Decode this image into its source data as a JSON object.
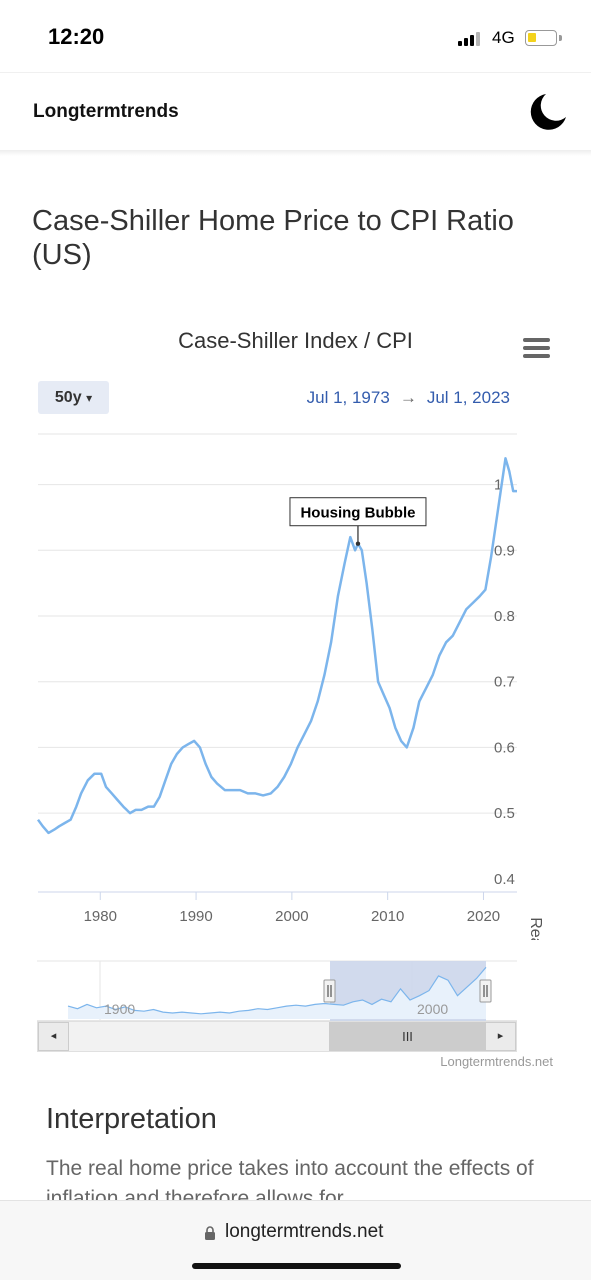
{
  "status_bar": {
    "time": "12:20",
    "network": "4G",
    "battery_level": 0.3
  },
  "header": {
    "brand": "Longtermtrends",
    "theme_icon": "moon-icon"
  },
  "page": {
    "title": "Case-Shiller Home Price to CPI Ratio (US)"
  },
  "chart_controls": {
    "range_label": "50y",
    "range_caret": "▾",
    "start_date": "Jul 1, 1973",
    "arrow": "→",
    "end_date": "Jul 1, 2023",
    "menu_icon": "hamburger-icon"
  },
  "chart_data": {
    "type": "line",
    "title": "Case-Shiller Index / CPI",
    "xlabel": "",
    "ylabel": "Real US Home Prices",
    "xlim": [
      1973.5,
      2023.5
    ],
    "ylim": [
      0.38,
      1.08
    ],
    "x_ticks": [
      1980,
      1990,
      2000,
      2010,
      2020
    ],
    "y_ticks": [
      0.4,
      0.5,
      0.6,
      0.7,
      0.8,
      0.9,
      1
    ],
    "y_tick_labels": [
      "0.4",
      "0.5",
      "0.6",
      "0.7",
      "0.8",
      "0.9",
      "1"
    ],
    "grid": true,
    "axis_side": "right",
    "line_color": "#7cb5ec",
    "annotation": {
      "text": "Housing Bubble",
      "x": 2006.9,
      "y": 0.91
    },
    "series": [
      {
        "x": [
          1973.5,
          1974,
          1974.6,
          1975.2,
          1975.7,
          1976.3,
          1976.9,
          1977.5,
          1978,
          1978.7,
          1979.4,
          1980.1,
          1980.6,
          1981.2,
          1981.8,
          1982.4,
          1983.1,
          1983.7,
          1984.3,
          1985,
          1985.6,
          1986.2,
          1986.8,
          1987.4,
          1988,
          1988.6,
          1989.2,
          1989.8,
          1990.4,
          1991,
          1991.6,
          1992.2,
          1993,
          1993.8,
          1994.6,
          1995.4,
          1996.2,
          1997,
          1997.8,
          1998.5,
          1999.2,
          1999.9,
          2000.6,
          2001.3,
          2002,
          2002.7,
          2003.4,
          2004.1,
          2004.8,
          2005.5,
          2006.1,
          2006.6,
          2006.9,
          2007.3,
          2007.8,
          2008.4,
          2009,
          2009.6,
          2010.2,
          2010.8,
          2011.4,
          2012,
          2012.7,
          2013.3,
          2014,
          2014.7,
          2015.4,
          2016.1,
          2016.8,
          2017.5,
          2018.2,
          2018.9,
          2019.6,
          2020.2,
          2020.8,
          2021.3,
          2021.8,
          2022.3,
          2022.7,
          2023.1,
          2023.5
        ],
        "values": [
          0.49,
          0.48,
          0.47,
          0.475,
          0.48,
          0.485,
          0.49,
          0.51,
          0.53,
          0.55,
          0.56,
          0.56,
          0.54,
          0.53,
          0.52,
          0.51,
          0.5,
          0.505,
          0.505,
          0.51,
          0.51,
          0.525,
          0.55,
          0.575,
          0.59,
          0.6,
          0.605,
          0.61,
          0.6,
          0.575,
          0.555,
          0.545,
          0.535,
          0.535,
          0.535,
          0.53,
          0.53,
          0.527,
          0.53,
          0.54,
          0.555,
          0.575,
          0.6,
          0.62,
          0.64,
          0.67,
          0.71,
          0.76,
          0.83,
          0.88,
          0.92,
          0.9,
          0.91,
          0.9,
          0.85,
          0.78,
          0.7,
          0.68,
          0.66,
          0.63,
          0.61,
          0.6,
          0.63,
          0.67,
          0.69,
          0.71,
          0.74,
          0.76,
          0.77,
          0.79,
          0.81,
          0.82,
          0.83,
          0.84,
          0.89,
          0.94,
          0.99,
          1.04,
          1.02,
          0.99,
          0.99
        ]
      }
    ]
  },
  "navigator": {
    "tick_labels": [
      "1900",
      "2000"
    ],
    "series": [
      0.5,
      0.47,
      0.52,
      0.48,
      0.5,
      0.46,
      0.49,
      0.45,
      0.44,
      0.46,
      0.43,
      0.42,
      0.43,
      0.42,
      0.41,
      0.42,
      0.43,
      0.42,
      0.44,
      0.45,
      0.47,
      0.46,
      0.48,
      0.5,
      0.51,
      0.5,
      0.52,
      0.53,
      0.52,
      0.51,
      0.55,
      0.57,
      0.52,
      0.58,
      0.55,
      0.7,
      0.57,
      0.62,
      0.68,
      0.85,
      0.8,
      0.62,
      0.72,
      0.82,
      0.95
    ]
  },
  "scrollbar": {
    "left_arrow": "◂",
    "right_arrow": "▸",
    "thumb_grip": "III"
  },
  "credit": "Longtermtrends.net",
  "interpretation": {
    "title": "Interpretation",
    "text": "The real home price takes into account the effects of inflation and therefore allows for"
  },
  "browser": {
    "url": "longtermtrends.net"
  }
}
